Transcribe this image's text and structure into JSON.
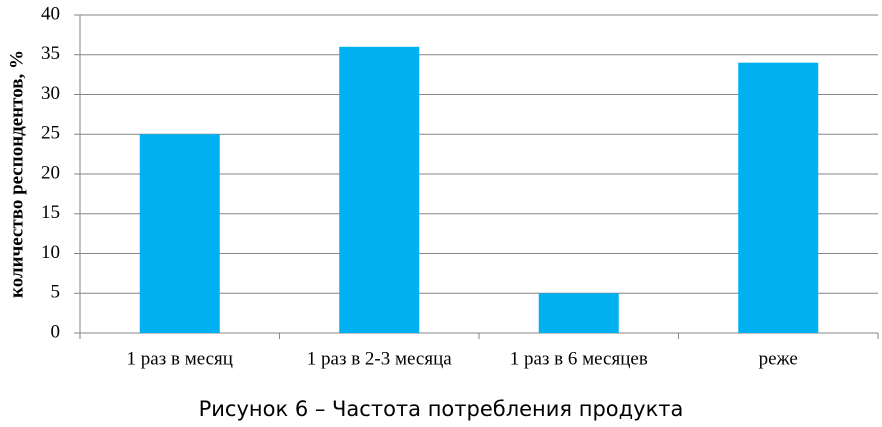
{
  "chart_data": {
    "type": "bar",
    "caption": "Рисунок 6 – Частота потребления продукта",
    "y_label": "количество респондентов, %",
    "categories": [
      "1 раз в месяц",
      "1 раз в 2-3 месяца",
      "1 раз в 6 месяцев",
      "реже"
    ],
    "values": [
      25,
      36,
      5,
      34
    ],
    "color": "#00b0f0",
    "ylim": [
      0,
      40
    ],
    "yticks": [
      0,
      5,
      10,
      15,
      20,
      25,
      30,
      35,
      40
    ],
    "grid": true
  }
}
